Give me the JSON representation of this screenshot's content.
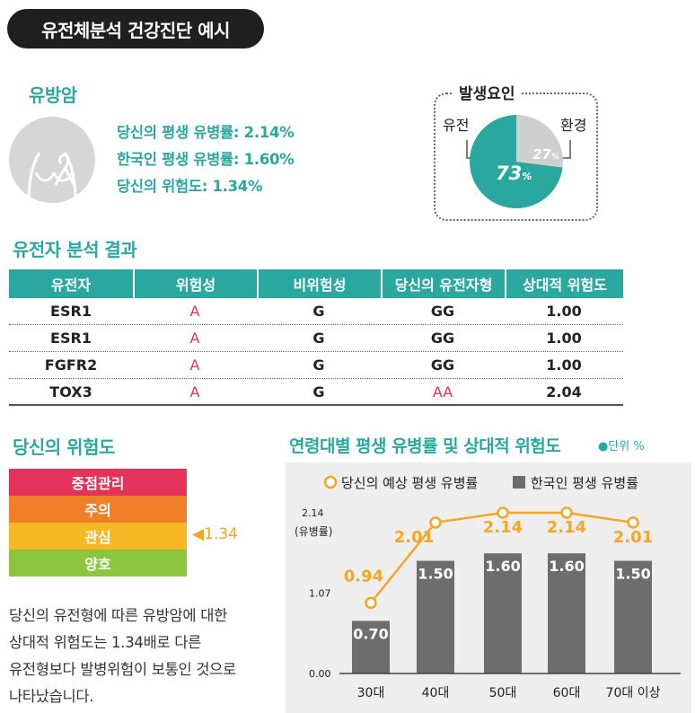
{
  "header": {
    "title": "유전체분석 건강진단 예시"
  },
  "disease": {
    "title": "유방암",
    "stats": [
      "당신의 평생 유병률: 2.14%",
      "한국인 평생 유병률: 1.60%",
      "당신의 위험도: 1.34%"
    ]
  },
  "factors": {
    "title": "발생요인",
    "genetic_label": "유전",
    "environment_label": "환경",
    "genetic_pct": 73,
    "environment_pct": 27,
    "genetic_text": "73",
    "environment_text": "27",
    "pct_sign": "%"
  },
  "gene_section": {
    "title": "유전자 분석 결과"
  },
  "gene_table": {
    "headers": [
      "유전자",
      "위험성",
      "비위험성",
      "당신의 유전자형",
      "상대적 위험도"
    ],
    "rows": [
      [
        "ESR1",
        "A",
        "G",
        "GG",
        "1.00"
      ],
      [
        "ESR1",
        "A",
        "G",
        "GG",
        "1.00"
      ],
      [
        "FGFR2",
        "A",
        "G",
        "GG",
        "1.00"
      ],
      [
        "TOX3",
        "A",
        "G",
        "AA",
        "2.04"
      ]
    ]
  },
  "risk": {
    "title": "당신의 위험도",
    "levels": [
      {
        "label": "중점관리",
        "color": "#e5325a"
      },
      {
        "label": "주의",
        "color": "#f07f2a"
      },
      {
        "label": "관심",
        "color": "#f7b826"
      },
      {
        "label": "양호",
        "color": "#8cc63f"
      }
    ],
    "marker": "◀1.34",
    "description": [
      "당신의 유전형에 따른 유방암에 대한",
      "상대적 위험도는 1.34배로 다른",
      "유전형보다 발병위험이 보통인 것으로",
      "나타났습니다."
    ]
  },
  "chart_section": {
    "title": "연령대별 평생 유병률 및 상대적 위험도",
    "unit": "●단위 %"
  },
  "chart_data": {
    "type": "bar",
    "categories": [
      "30대",
      "40대",
      "50대",
      "60대",
      "70대 이상"
    ],
    "series": [
      {
        "name": "당신의 예상 평생 유병률",
        "type": "line",
        "values": [
          0.94,
          2.01,
          2.14,
          2.14,
          2.01
        ],
        "labels": [
          "0.94",
          "2.01",
          "2.14",
          "2.14",
          "2.01"
        ],
        "color": "#f5a623"
      },
      {
        "name": "한국인 평생 유병률",
        "type": "bar",
        "values": [
          0.7,
          1.5,
          1.6,
          1.6,
          1.5
        ],
        "labels": [
          "0.70",
          "1.50",
          "1.60",
          "1.60",
          "1.50"
        ],
        "color": "#6d6d6d"
      }
    ],
    "yticks": [
      "0.00",
      "1.07",
      "2.14"
    ],
    "ylabel": "(유병률)",
    "ylim": [
      0,
      2.14
    ],
    "legend_position": "top"
  }
}
